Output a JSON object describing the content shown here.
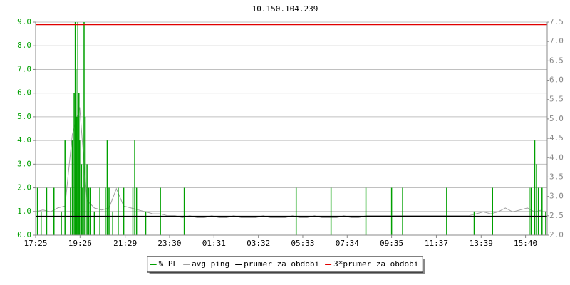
{
  "chart_data": {
    "type": "line",
    "title": "10.150.104.239",
    "xlim": [
      0,
      1394
    ],
    "xticks": [
      {
        "value": 0,
        "label": "17:25"
      },
      {
        "value": 121,
        "label": "19:26"
      },
      {
        "value": 244,
        "label": "21:29"
      },
      {
        "value": 365,
        "label": "23:30"
      },
      {
        "value": 486,
        "label": "01:31"
      },
      {
        "value": 607,
        "label": "03:32"
      },
      {
        "value": 728,
        "label": "05:33"
      },
      {
        "value": 849,
        "label": "07:34"
      },
      {
        "value": 970,
        "label": "09:35"
      },
      {
        "value": 1092,
        "label": "11:37"
      },
      {
        "value": 1214,
        "label": "13:39"
      },
      {
        "value": 1335,
        "label": "15:40"
      }
    ],
    "ylim": [
      0,
      9
    ],
    "yticks": [
      {
        "value": 0,
        "label": "0.0"
      },
      {
        "value": 1,
        "label": "1.0"
      },
      {
        "value": 2,
        "label": "2.0"
      },
      {
        "value": 3,
        "label": "3.0"
      },
      {
        "value": 4,
        "label": "4.0"
      },
      {
        "value": 5,
        "label": "5.0"
      },
      {
        "value": 6,
        "label": "6.0"
      },
      {
        "value": 7,
        "label": "7.0"
      },
      {
        "value": 8,
        "label": "8.0"
      },
      {
        "value": 9,
        "label": "9.0"
      }
    ],
    "y2lim": [
      2,
      7.5
    ],
    "y2ticks": [
      {
        "value": 2,
        "label": "2.0"
      },
      2.5,
      {
        "value": 3,
        "label": "3.0"
      },
      3.5,
      {
        "value": 4,
        "label": "4.0"
      },
      4.5,
      {
        "value": 5,
        "label": "5.0"
      },
      5.5,
      {
        "value": 6,
        "label": "6.0"
      },
      6.5,
      {
        "value": 7,
        "label": "7.0"
      },
      7.5
    ],
    "grid": true,
    "legend": "bottom",
    "series": [
      {
        "name": "% PL",
        "color": "#00a000",
        "style": "spikes",
        "x": [
          5,
          15,
          30,
          50,
          70,
          80,
          95,
          100,
          105,
          108,
          110,
          112,
          115,
          118,
          120,
          125,
          128,
          132,
          135,
          140,
          145,
          150,
          160,
          175,
          190,
          195,
          200,
          210,
          225,
          240,
          265,
          270,
          275,
          300,
          340,
          405,
          710,
          805,
          900,
          970,
          1000,
          1120,
          1195,
          1245,
          1345,
          1350,
          1360,
          1365,
          1370,
          1380,
          1390
        ],
        "values": [
          2,
          1,
          2,
          2,
          1,
          4,
          2,
          4,
          6,
          9,
          7,
          5,
          9,
          6,
          4,
          3,
          2,
          9,
          5,
          3,
          2,
          2,
          1,
          2,
          2,
          4,
          2,
          1,
          2,
          2,
          2,
          4,
          2,
          1,
          2,
          2,
          2,
          2,
          2,
          2,
          2,
          2,
          1,
          2,
          2,
          2,
          4,
          3,
          2,
          2,
          1
        ]
      },
      {
        "name": "avg ping",
        "color": "#a0a0a0",
        "style": "line",
        "axis": "y2",
        "x": [
          0,
          20,
          40,
          60,
          80,
          100,
          120,
          140,
          160,
          180,
          200,
          220,
          240,
          260,
          280,
          300,
          320,
          340,
          360,
          380,
          400,
          420,
          440,
          460,
          480,
          500,
          520,
          540,
          560,
          580,
          600,
          620,
          640,
          660,
          680,
          700,
          720,
          740,
          760,
          780,
          800,
          820,
          840,
          860,
          880,
          900,
          920,
          940,
          960,
          980,
          1000,
          1020,
          1040,
          1060,
          1080,
          1100,
          1120,
          1140,
          1160,
          1180,
          1200,
          1220,
          1240,
          1260,
          1280,
          1300,
          1320,
          1340,
          1360,
          1380
        ],
        "values": [
          2.6,
          2.65,
          2.6,
          2.7,
          2.75,
          4.6,
          5.3,
          2.9,
          2.7,
          2.65,
          2.7,
          3.2,
          2.75,
          2.7,
          2.65,
          2.6,
          2.55,
          2.55,
          2.5,
          2.5,
          2.45,
          2.5,
          2.45,
          2.45,
          2.5,
          2.45,
          2.45,
          2.5,
          2.45,
          2.45,
          2.45,
          2.5,
          2.45,
          2.45,
          2.45,
          2.5,
          2.45,
          2.45,
          2.5,
          2.45,
          2.45,
          2.45,
          2.5,
          2.45,
          2.45,
          2.5,
          2.5,
          2.5,
          2.5,
          2.5,
          2.5,
          2.5,
          2.5,
          2.5,
          2.5,
          2.5,
          2.5,
          2.5,
          2.5,
          2.5,
          2.55,
          2.6,
          2.55,
          2.6,
          2.7,
          2.6,
          2.65,
          2.7,
          2.6,
          2.65
        ]
      },
      {
        "name": "prumer za obdobi",
        "color": "#000000",
        "style": "hline",
        "axis": "y2",
        "values": [
          2.48
        ]
      },
      {
        "name": "3*prumer za obdobi",
        "color": "#e00000",
        "style": "hline",
        "axis": "y2",
        "values": [
          7.44
        ]
      }
    ]
  }
}
